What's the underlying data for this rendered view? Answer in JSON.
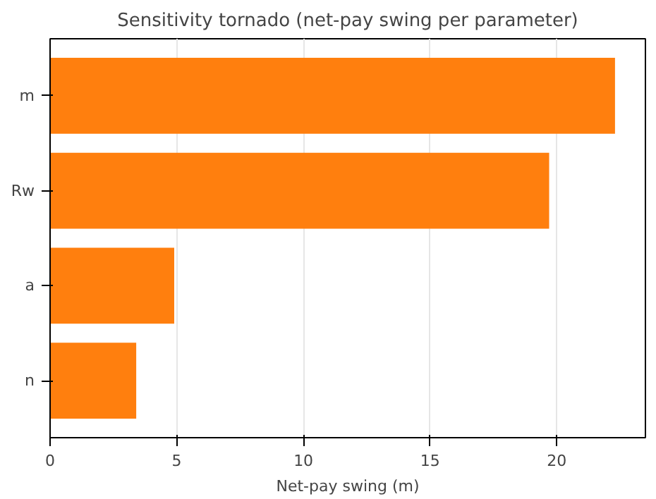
{
  "chart_data": {
    "type": "bar",
    "orientation": "horizontal",
    "title": "Sensitivity tornado (net-pay swing per parameter)",
    "xlabel": "Net-pay swing (m)",
    "categories": [
      "m",
      "Rw",
      "a",
      "n"
    ],
    "values": [
      22.3,
      19.7,
      4.9,
      3.4
    ],
    "color": "#ff7f0e",
    "xlim": [
      0,
      23.5
    ],
    "xticks": [
      0,
      5,
      10,
      15,
      20
    ],
    "grid": "x"
  }
}
